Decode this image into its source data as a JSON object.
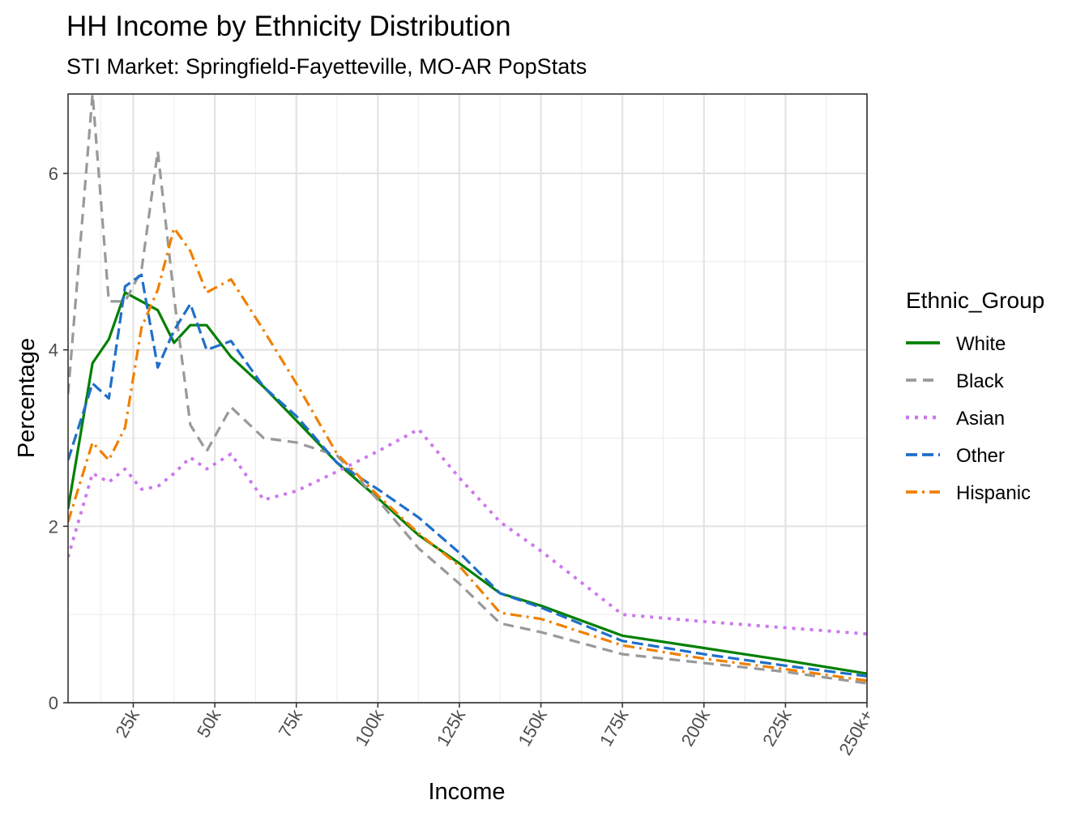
{
  "chart_data": {
    "type": "line",
    "title": "HH Income by Ethnicity Distribution",
    "subtitle": "STI Market: Springfield-Fayetteville, MO-AR PopStats",
    "xlabel": "Income",
    "ylabel": "Percentage",
    "xlim": [
      5,
      250
    ],
    "ylim": [
      0,
      6.9
    ],
    "x_ticks": [
      {
        "value": 25,
        "label": "25k"
      },
      {
        "value": 50,
        "label": "50k"
      },
      {
        "value": 75,
        "label": "75k"
      },
      {
        "value": 100,
        "label": "100k"
      },
      {
        "value": 125,
        "label": "125k"
      },
      {
        "value": 150,
        "label": "150k"
      },
      {
        "value": 175,
        "label": "175k"
      },
      {
        "value": 200,
        "label": "200k"
      },
      {
        "value": 225,
        "label": "225k"
      },
      {
        "value": 250,
        "label": "250k+"
      }
    ],
    "y_ticks": [
      {
        "value": 0,
        "label": "0"
      },
      {
        "value": 2,
        "label": "2"
      },
      {
        "value": 4,
        "label": "4"
      },
      {
        "value": 6,
        "label": "6"
      }
    ],
    "grid": true,
    "legend_title": "Ethnic_Group",
    "legend_position": "right",
    "x": [
      5,
      12.5,
      17.5,
      22.5,
      27.5,
      32.5,
      37.5,
      42.5,
      47.5,
      55,
      65,
      75,
      87.5,
      100,
      112.5,
      125,
      137.5,
      150,
      175,
      200,
      225,
      250
    ],
    "series": [
      {
        "name": "White",
        "color": "#008000",
        "dash": "",
        "width": 3.2,
        "values": [
          2.2,
          3.85,
          4.12,
          4.65,
          4.55,
          4.45,
          4.08,
          4.28,
          4.28,
          3.92,
          3.58,
          3.2,
          2.72,
          2.32,
          1.9,
          1.58,
          1.24,
          1.1,
          0.76,
          0.62,
          0.48,
          0.33
        ]
      },
      {
        "name": "Black",
        "color": "#999999",
        "dash": "13,8",
        "width": 3.2,
        "values": [
          3.5,
          6.9,
          4.55,
          4.55,
          4.9,
          6.25,
          4.6,
          3.15,
          2.85,
          3.35,
          3.0,
          2.95,
          2.8,
          2.3,
          1.75,
          1.35,
          0.9,
          0.8,
          0.55,
          0.45,
          0.35,
          0.22
        ]
      },
      {
        "name": "Asian",
        "color": "#cc77ee",
        "dash": "4,7",
        "width": 3.8,
        "values": [
          1.65,
          2.6,
          2.5,
          2.65,
          2.42,
          2.45,
          2.6,
          2.78,
          2.65,
          2.82,
          2.3,
          2.4,
          2.62,
          2.85,
          3.1,
          2.55,
          2.05,
          1.72,
          1.0,
          0.92,
          0.85,
          0.78
        ]
      },
      {
        "name": "Other",
        "color": "#1f6fc9",
        "dash": "14,6",
        "width": 3.2,
        "values": [
          2.75,
          3.62,
          3.45,
          4.72,
          4.85,
          3.8,
          4.22,
          4.52,
          4.0,
          4.1,
          3.58,
          3.25,
          2.72,
          2.42,
          2.1,
          1.7,
          1.24,
          1.08,
          0.7,
          0.55,
          0.42,
          0.3
        ]
      },
      {
        "name": "Hispanic",
        "color": "#f08000",
        "dash": "14,6,3,6",
        "width": 3.2,
        "values": [
          2.05,
          2.95,
          2.75,
          3.12,
          4.25,
          4.68,
          5.38,
          5.12,
          4.65,
          4.8,
          4.22,
          3.62,
          2.82,
          2.35,
          1.92,
          1.55,
          1.02,
          0.95,
          0.65,
          0.5,
          0.38,
          0.25
        ]
      }
    ]
  }
}
